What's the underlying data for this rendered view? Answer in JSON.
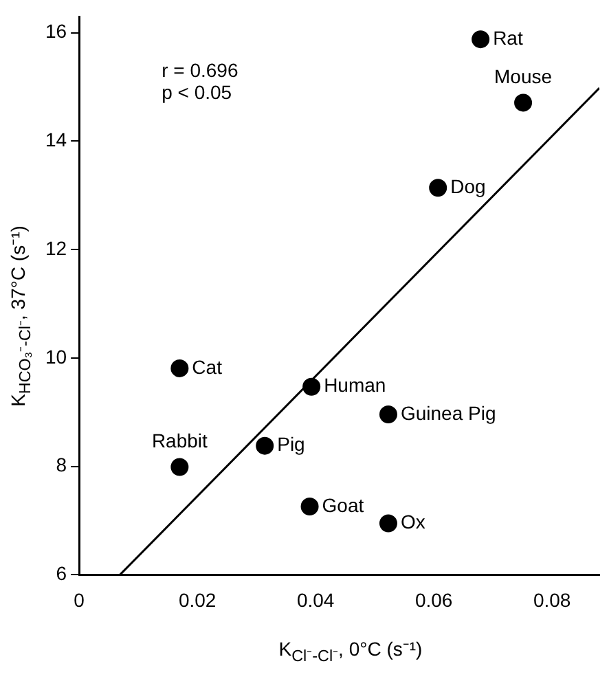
{
  "chart_data": {
    "type": "scatter",
    "xlabel": "K$_{Cl⁻-Cl⁻}$, 0°C (s⁻¹)",
    "ylabel": "K$_{HCO₃⁻-Cl⁻}$, 37°C (s⁻¹)",
    "xlim": [
      0,
      0.088
    ],
    "xticks": [
      0,
      0.02,
      0.04,
      0.06,
      0.08
    ],
    "ylim": [
      6,
      16.3
    ],
    "yticks": [
      6,
      8,
      10,
      12,
      14,
      16
    ],
    "grid": false,
    "legend": false,
    "marker": "circle",
    "series": [
      {
        "color": "#000000",
        "x": [
          0.0679,
          0.0751,
          0.0607,
          0.017,
          0.0393,
          0.0523,
          0.0314,
          0.017,
          0.039,
          0.0523
        ],
        "values": [
          15.88,
          14.71,
          13.14,
          9.81,
          9.47,
          8.96,
          8.38,
          7.99,
          7.26,
          6.95
        ]
      },
      {
        "type": "line",
        "color": "#000000",
        "marker": "none",
        "line_style": "solid",
        "x": [
          0.0069,
          0.088
        ],
        "values": [
          6,
          14.98
        ]
      }
    ],
    "annotations": [
      "r = 0.696",
      "p < 0.05",
      {
        "text": "Rat",
        "x": 0.0679,
        "y": 15.88
      },
      {
        "text": "Mouse",
        "x": 0.0751,
        "y": 14.71
      },
      {
        "text": "Dog",
        "x": 0.0607,
        "y": 13.14
      },
      {
        "text": "Cat",
        "x": 0.017,
        "y": 9.81
      },
      {
        "text": "Human",
        "x": 0.0393,
        "y": 9.47
      },
      {
        "text": "Guinea Pig",
        "x": 0.0523,
        "y": 8.96
      },
      {
        "text": "Pig",
        "x": 0.0314,
        "y": 8.38
      },
      {
        "text": "Rabbit",
        "x": 0.017,
        "y": 7.99
      },
      {
        "text": "Goat",
        "x": 0.039,
        "y": 7.26
      },
      {
        "text": "Ox",
        "x": 0.0523,
        "y": 6.95
      }
    ]
  }
}
